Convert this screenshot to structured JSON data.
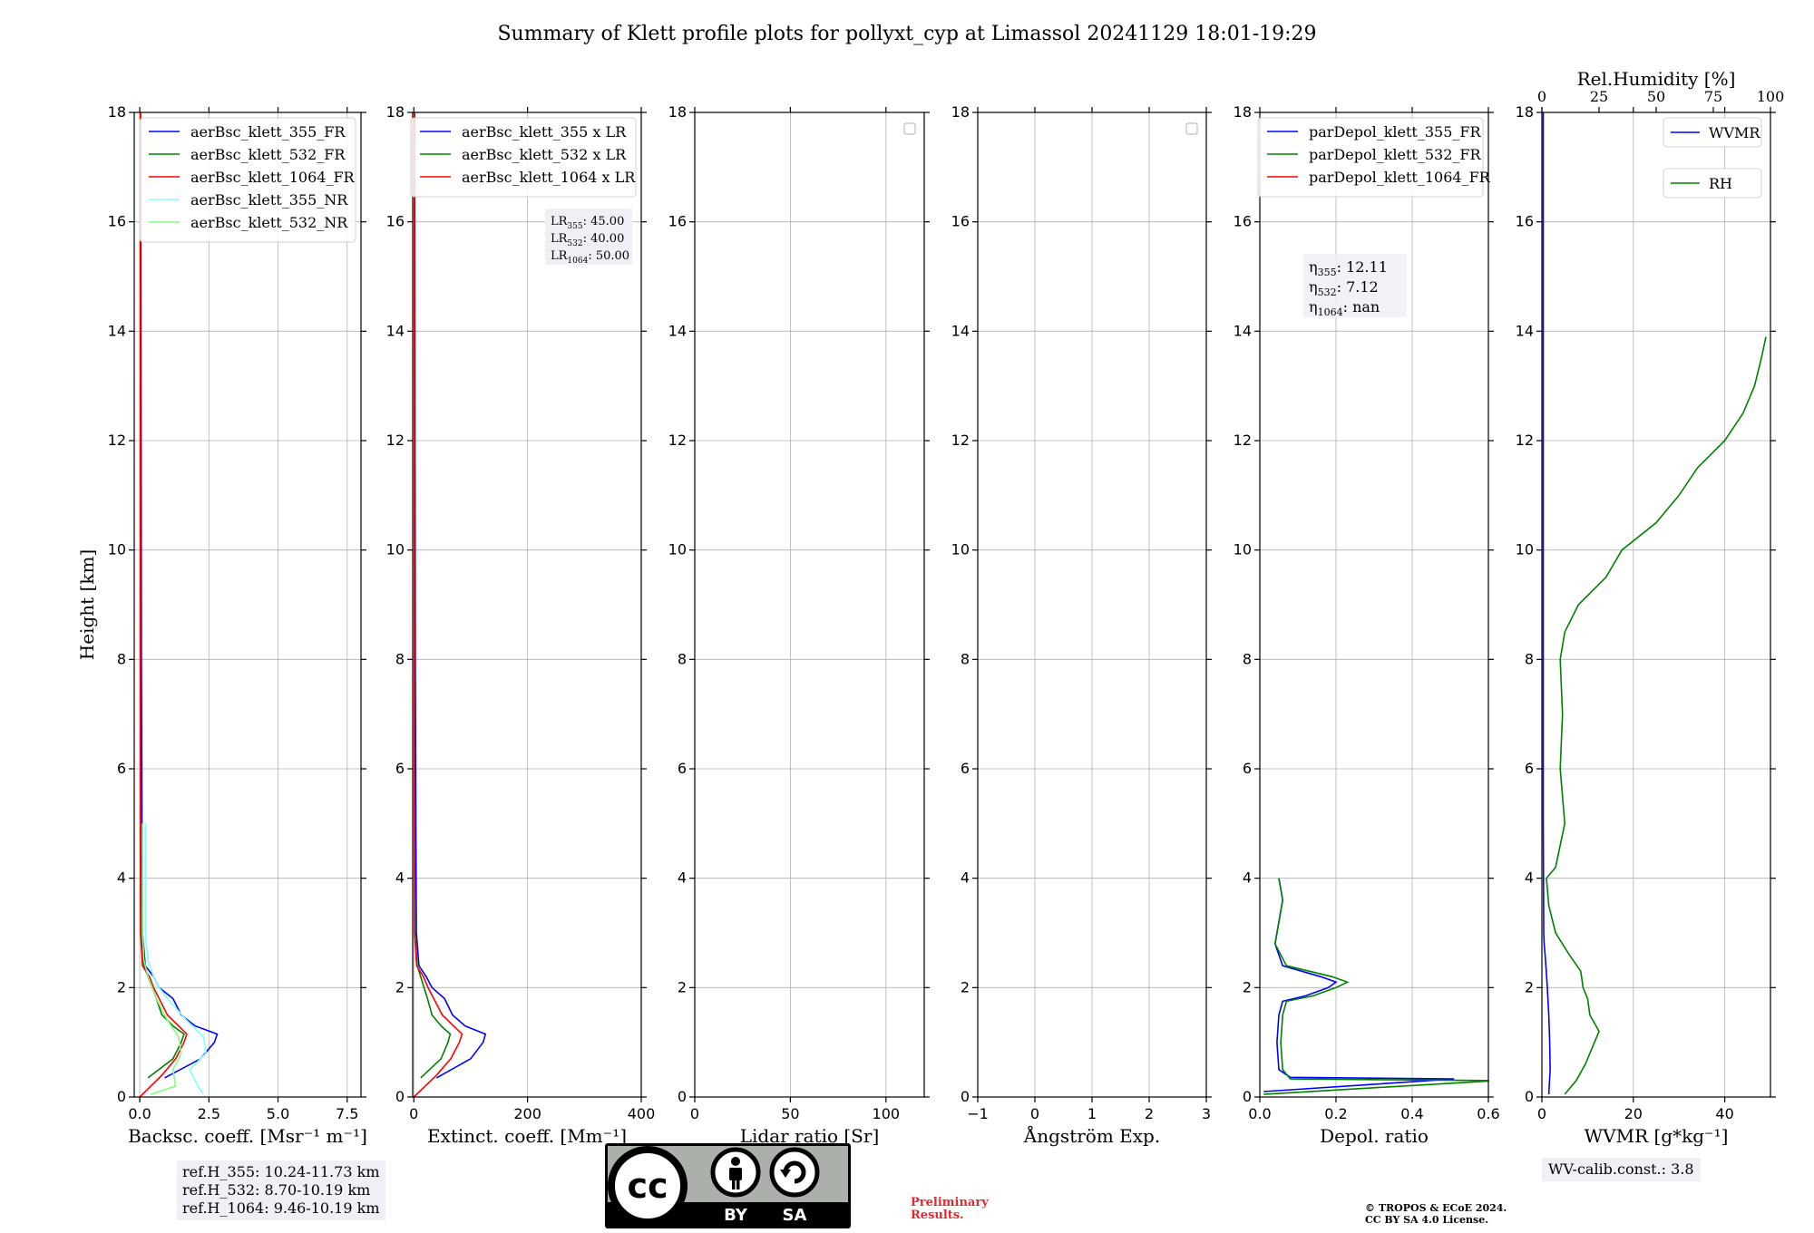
{
  "figure_title": "Summary of Klett profile plots for pollyxt_cyp at Limassol 20241129 18:01-19:29",
  "notes": {
    "ref_heights": [
      "ref.H_355: 10.24-11.73 km",
      "ref.H_532: 8.70-10.19 km",
      "ref.H_1064: 9.46-10.19 km"
    ],
    "wv_calib": "WV-calib.const.: 3.8",
    "preliminary": [
      "Preliminary",
      "Results."
    ],
    "copyright": [
      "© TROPOS & ECoE 2024.",
      "CC BY SA 4.0 License."
    ],
    "license_logo": {
      "cc": "cc",
      "by": "BY",
      "sa": "SA",
      "icons": [
        "cc-icon",
        "person-icon",
        "share-alike-icon"
      ]
    }
  },
  "colors": {
    "355": "#0000ff",
    "532": "#008000",
    "1064": "#ff0000",
    "355_NR": "#80ffff",
    "532_NR": "#80ff80"
  },
  "chart_data": [
    {
      "type": "line",
      "id": "backscatter",
      "xlabel": "Backsc. coeff. [Msr⁻¹ m⁻¹]",
      "ylabel": "Height [km]",
      "xlim": [
        -0.2,
        8.0
      ],
      "ylim": [
        0,
        18
      ],
      "xticks": [
        0,
        2.5,
        5.0,
        7.5
      ],
      "xticklabels": [
        "0.0",
        "2.5",
        "5.0",
        "7.5"
      ],
      "yticks": [
        0,
        2,
        4,
        6,
        8,
        10,
        12,
        14,
        16,
        18
      ],
      "grid": true,
      "legend": "top-right",
      "series": [
        {
          "name": "aerBsc_klett_355_FR",
          "color": "#0000ff",
          "y": [
            0.35,
            0.7,
            1.0,
            1.15,
            1.3,
            1.5,
            1.8,
            2.0,
            2.2,
            2.4,
            3.0,
            5.0,
            8.0,
            12.0,
            16.0,
            18.0
          ],
          "x": [
            0.9,
            2.2,
            2.7,
            2.8,
            2.0,
            1.5,
            1.2,
            0.7,
            0.5,
            0.2,
            0.1,
            0.08,
            0.06,
            0.05,
            0.04,
            0.03
          ]
        },
        {
          "name": "aerBsc_klett_532_FR",
          "color": "#008000",
          "y": [
            0.35,
            0.7,
            1.0,
            1.15,
            1.3,
            1.5,
            1.8,
            2.0,
            2.2,
            2.4,
            3.0,
            5.0,
            8.0,
            12.0,
            16.0,
            18.0
          ],
          "x": [
            0.3,
            1.2,
            1.5,
            1.6,
            1.2,
            0.8,
            0.6,
            0.45,
            0.3,
            0.15,
            0.05,
            0.03,
            0.02,
            0.02,
            0.02,
            0.02
          ]
        },
        {
          "name": "aerBsc_klett_1064_FR",
          "color": "#ff0000",
          "y": [
            0.0,
            0.4,
            0.7,
            1.0,
            1.15,
            1.3,
            1.5,
            1.8,
            2.0,
            2.2,
            2.4,
            3.0,
            5.0,
            10.0,
            18.0
          ],
          "x": [
            0.0,
            0.8,
            1.3,
            1.6,
            1.7,
            1.4,
            1.0,
            0.7,
            0.5,
            0.35,
            0.1,
            0.03,
            0.02,
            0.02,
            0.02
          ]
        },
        {
          "name": "aerBsc_klett_355_NR",
          "color": "#80ffff",
          "y": [
            0.05,
            0.2,
            0.5,
            0.8,
            1.1,
            1.4,
            1.8,
            2.0,
            2.2,
            2.5,
            3.0,
            4.0,
            5.0
          ],
          "x": [
            2.3,
            2.1,
            1.8,
            2.4,
            2.3,
            1.7,
            1.0,
            0.7,
            0.5,
            0.3,
            0.2,
            0.2,
            0.2
          ]
        },
        {
          "name": "aerBsc_klett_532_NR",
          "color": "#80ff80",
          "y": [
            0.05,
            0.2,
            0.5,
            0.8,
            1.1,
            1.4,
            1.8,
            2.0,
            2.2,
            2.5,
            3.0,
            4.0,
            5.0
          ],
          "x": [
            0.4,
            1.3,
            1.2,
            1.5,
            1.4,
            1.0,
            0.6,
            0.45,
            0.3,
            0.15,
            0.1,
            0.1,
            0.1
          ]
        }
      ],
      "annotations": []
    },
    {
      "type": "line",
      "id": "extinction",
      "xlabel": "Extinct. coeff. [Mm⁻¹]",
      "ylabel": "",
      "xlim": [
        -2,
        400
      ],
      "ylim": [
        0,
        18
      ],
      "xticks": [
        0,
        200,
        400
      ],
      "xticklabels": [
        "0",
        "200",
        "400"
      ],
      "yticks": [
        0,
        2,
        4,
        6,
        8,
        10,
        12,
        14,
        16,
        18
      ],
      "grid": true,
      "legend": "top-right",
      "series": [
        {
          "name": "aerBsc_klett_355 x LR",
          "color": "#0000ff",
          "y": [
            0.35,
            0.7,
            1.0,
            1.15,
            1.3,
            1.5,
            1.8,
            2.0,
            2.2,
            2.4,
            3.0,
            5.0,
            8.0,
            12.0,
            16.0,
            18.0
          ],
          "x": [
            40,
            100,
            122,
            126,
            90,
            68,
            54,
            32,
            22,
            9,
            4.5,
            3.6,
            2.7,
            2.2,
            1.8,
            1.4
          ]
        },
        {
          "name": "aerBsc_klett_532 x LR",
          "color": "#008000",
          "y": [
            0.35,
            0.7,
            1.0,
            1.15,
            1.3,
            1.5,
            1.8,
            2.0,
            2.2,
            2.4,
            3.0,
            5.0,
            8.0,
            12.0,
            16.0,
            18.0
          ],
          "x": [
            12,
            48,
            60,
            64,
            48,
            32,
            24,
            18,
            12,
            6,
            2,
            1.2,
            0.8,
            0.8,
            0.8,
            0.8
          ]
        },
        {
          "name": "aerBsc_klett_1064 x LR",
          "color": "#ff0000",
          "y": [
            0.0,
            0.4,
            0.7,
            1.0,
            1.15,
            1.3,
            1.5,
            1.8,
            2.0,
            2.2,
            2.4,
            3.0,
            5.0,
            10.0,
            18.0
          ],
          "x": [
            0,
            40,
            65,
            80,
            85,
            70,
            50,
            35,
            25,
            17,
            5,
            1.5,
            1,
            1,
            1
          ]
        }
      ],
      "annotations": [
        [
          "LR",
          "355",
          ": 45.00"
        ],
        [
          "LR",
          "532",
          ": 40.00"
        ],
        [
          "LR",
          "1064",
          ": 50.00"
        ]
      ]
    },
    {
      "type": "line",
      "id": "lidar_ratio",
      "xlabel": "Lidar ratio [Sr]",
      "ylabel": "",
      "xlim": [
        0,
        120
      ],
      "ylim": [
        0,
        18
      ],
      "xticks": [
        0,
        50,
        100
      ],
      "xticklabels": [
        "0",
        "50",
        "100"
      ],
      "yticks": [
        0,
        2,
        4,
        6,
        8,
        10,
        12,
        14,
        16,
        18
      ],
      "grid": true,
      "legend": "top-right",
      "series": [],
      "annotations": []
    },
    {
      "type": "line",
      "id": "angstrom",
      "xlabel": "Ångström Exp.",
      "ylabel": "",
      "xlim": [
        -1,
        3
      ],
      "ylim": [
        0,
        18
      ],
      "xticks": [
        -1,
        0,
        1,
        2,
        3
      ],
      "xticklabels": [
        "−1",
        "0",
        "1",
        "2",
        "3"
      ],
      "yticks": [
        0,
        2,
        4,
        6,
        8,
        10,
        12,
        14,
        16,
        18
      ],
      "grid": true,
      "legend": "top-right",
      "series": [],
      "annotations": []
    },
    {
      "type": "line",
      "id": "depol",
      "xlabel": "Depol. ratio",
      "ylabel": "",
      "xlim": [
        0,
        0.6
      ],
      "ylim": [
        0,
        18
      ],
      "xticks": [
        0,
        0.2,
        0.4,
        0.6
      ],
      "xticklabels": [
        "0.0",
        "0.2",
        "0.4",
        "0.6"
      ],
      "yticks": [
        0,
        2,
        4,
        6,
        8,
        10,
        12,
        14,
        16,
        18
      ],
      "grid": true,
      "legend": "top-right",
      "series": [
        {
          "name": "parDepol_klett_355_FR",
          "color": "#0000ff",
          "y": [
            0.1,
            0.33,
            0.36,
            0.5,
            1.0,
            1.5,
            1.75,
            1.85,
            2.0,
            2.1,
            2.2,
            2.4,
            2.8,
            3.2,
            3.6,
            4.0
          ],
          "x": [
            0.01,
            0.51,
            0.08,
            0.05,
            0.045,
            0.05,
            0.06,
            0.12,
            0.18,
            0.2,
            0.16,
            0.06,
            0.04,
            0.05,
            0.06,
            0.05
          ]
        },
        {
          "name": "parDepol_klett_532_FR",
          "color": "#008000",
          "y": [
            0.05,
            0.3,
            0.33,
            0.5,
            1.0,
            1.5,
            1.75,
            1.85,
            2.0,
            2.1,
            2.2,
            2.4,
            2.8,
            3.2,
            3.6,
            4.0
          ],
          "x": [
            0.01,
            0.62,
            0.08,
            0.06,
            0.055,
            0.06,
            0.07,
            0.14,
            0.2,
            0.23,
            0.19,
            0.07,
            0.04,
            0.05,
            0.06,
            0.05
          ]
        },
        {
          "name": "parDepol_klett_1064_FR",
          "color": "#ff0000",
          "y": [],
          "x": []
        }
      ],
      "annotations": [
        [
          "η",
          "355",
          ": 12.11"
        ],
        [
          "η",
          "532",
          ": 7.12"
        ],
        [
          "η",
          "1064",
          ": nan"
        ]
      ]
    },
    {
      "type": "line",
      "id": "wvmr",
      "xlabel": "WVMR [g*kg⁻¹]",
      "ylabel": "",
      "xlim": [
        0,
        50
      ],
      "ylim": [
        0,
        18
      ],
      "xticks": [
        0,
        20,
        40
      ],
      "xticklabels": [
        "0",
        "20",
        "40"
      ],
      "yticks": [
        0,
        2,
        4,
        6,
        8,
        10,
        12,
        14,
        16,
        18
      ],
      "x2label": "Rel.Humidity [%]",
      "x2lim": [
        0,
        100
      ],
      "x2ticks": [
        0,
        25,
        50,
        75,
        100
      ],
      "x2ticklabels": [
        "0",
        "25",
        "50",
        "75",
        "100"
      ],
      "grid": true,
      "legend": "top-right",
      "series": [
        {
          "name": "WVMR",
          "color": "#0000ff",
          "axis": "bottom",
          "y": [
            0.05,
            0.5,
            1.0,
            1.5,
            2.0,
            2.5,
            2.8,
            3.0,
            5.0,
            8.0,
            12.0,
            16.0,
            18.0
          ],
          "x": [
            1.5,
            1.8,
            1.7,
            1.5,
            1.2,
            0.8,
            0.5,
            0.4,
            0.3,
            0.3,
            0.3,
            0.3,
            0.3
          ]
        },
        {
          "name": "RH",
          "color": "#008000",
          "axis": "top",
          "y": [
            0.05,
            0.3,
            0.6,
            1.0,
            1.2,
            1.5,
            1.8,
            2.0,
            2.3,
            2.6,
            3.0,
            3.5,
            4.0,
            4.2,
            5.0,
            6.0,
            7.0,
            8.0,
            8.5,
            9.0,
            9.5,
            10.0,
            10.5,
            11.0,
            11.5,
            12.0,
            12.5,
            13.0,
            13.5,
            13.9
          ],
          "x": [
            10,
            15,
            19,
            23,
            25,
            21,
            20,
            18,
            17,
            12,
            6,
            3,
            2,
            6,
            10,
            8,
            9,
            8,
            10,
            16,
            28,
            35,
            50,
            60,
            68,
            80,
            88,
            93,
            96,
            98
          ]
        }
      ],
      "annotations": []
    }
  ]
}
